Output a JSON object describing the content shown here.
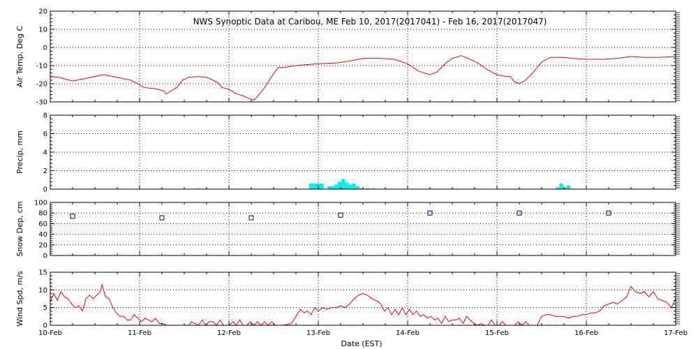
{
  "chart_data": {
    "type": "line",
    "title": "NWS Synoptic Data at Caribou, ME   Feb 10, 2017(2017041) - Feb 16, 2017(2017047)",
    "xlabel": "Date (EST)",
    "x_ticks": [
      "10-Feb",
      "11-Feb",
      "12-Feb",
      "13-Feb",
      "14-Feb",
      "15-Feb",
      "16-Feb",
      "17-Feb"
    ],
    "colors": {
      "temp": "#e8000b",
      "precip": "#00f0f0",
      "snow": "#000080",
      "wind": "#e8000b",
      "grid": "#000000"
    },
    "panels": [
      {
        "id": "temp",
        "type": "line",
        "ylabel": "Air Temp, Deg C",
        "ylim": [
          -30,
          20
        ],
        "y_ticks": [
          -30,
          -20,
          -10,
          0,
          10,
          20
        ],
        "points": [
          [
            0.0,
            -16.0
          ],
          [
            0.1,
            -16.5
          ],
          [
            0.25,
            -18.5
          ],
          [
            0.4,
            -17.0
          ],
          [
            0.55,
            -15.5
          ],
          [
            0.6,
            -15.0
          ],
          [
            0.75,
            -16.5
          ],
          [
            0.9,
            -18.0
          ],
          [
            0.98,
            -20.0
          ],
          [
            1.05,
            -22.0
          ],
          [
            1.2,
            -23.0
          ],
          [
            1.27,
            -24.0
          ],
          [
            1.3,
            -25.5
          ],
          [
            1.35,
            -24.0
          ],
          [
            1.42,
            -22.0
          ],
          [
            1.48,
            -18.0
          ],
          [
            1.55,
            -16.5
          ],
          [
            1.65,
            -16.0
          ],
          [
            1.75,
            -16.5
          ],
          [
            1.8,
            -17.5
          ],
          [
            1.88,
            -19.5
          ],
          [
            1.92,
            -22.0
          ],
          [
            2.0,
            -23.0
          ],
          [
            2.08,
            -25.5
          ],
          [
            2.15,
            -26.5
          ],
          [
            2.22,
            -28.0
          ],
          [
            2.28,
            -29.0
          ],
          [
            2.32,
            -27.0
          ],
          [
            2.4,
            -22.0
          ],
          [
            2.48,
            -16.0
          ],
          [
            2.55,
            -11.0
          ],
          [
            2.62,
            -11.0
          ],
          [
            2.75,
            -10.0
          ],
          [
            2.85,
            -9.5
          ],
          [
            3.0,
            -9.0
          ],
          [
            3.2,
            -8.5
          ],
          [
            3.35,
            -7.5
          ],
          [
            3.5,
            -6.0
          ],
          [
            3.7,
            -6.0
          ],
          [
            3.85,
            -6.5
          ],
          [
            4.0,
            -9.0
          ],
          [
            4.12,
            -13.0
          ],
          [
            4.25,
            -15.0
          ],
          [
            4.33,
            -13.5
          ],
          [
            4.42,
            -9.0
          ],
          [
            4.5,
            -6.0
          ],
          [
            4.6,
            -4.5
          ],
          [
            4.7,
            -6.5
          ],
          [
            4.8,
            -9.0
          ],
          [
            4.9,
            -12.5
          ],
          [
            5.0,
            -15.0
          ],
          [
            5.1,
            -16.0
          ],
          [
            5.15,
            -16.0
          ],
          [
            5.2,
            -19.0
          ],
          [
            5.25,
            -20.0
          ],
          [
            5.32,
            -18.0
          ],
          [
            5.4,
            -14.0
          ],
          [
            5.5,
            -8.0
          ],
          [
            5.6,
            -5.5
          ],
          [
            5.75,
            -5.5
          ],
          [
            5.85,
            -6.0
          ],
          [
            6.0,
            -6.5
          ],
          [
            6.2,
            -6.5
          ],
          [
            6.35,
            -6.0
          ],
          [
            6.5,
            -5.0
          ],
          [
            6.65,
            -5.5
          ],
          [
            6.8,
            -5.5
          ],
          [
            7.0,
            -5.0
          ]
        ]
      },
      {
        "id": "precip",
        "type": "bar",
        "ylabel": "Precip, mm",
        "ylim": [
          0,
          8
        ],
        "y_ticks": [
          0,
          2,
          4,
          6,
          8
        ],
        "bar_width_days": 0.04167,
        "bars": [
          [
            1.65,
            0.1
          ],
          [
            2.92,
            0.6
          ],
          [
            2.96,
            0.6
          ],
          [
            3.0,
            0.6
          ],
          [
            3.04,
            0.6
          ],
          [
            3.12,
            0.3
          ],
          [
            3.16,
            0.3
          ],
          [
            3.2,
            0.5
          ],
          [
            3.24,
            0.8
          ],
          [
            3.28,
            1.1
          ],
          [
            3.32,
            0.7
          ],
          [
            3.36,
            0.5
          ],
          [
            3.4,
            0.6
          ],
          [
            3.44,
            0.3
          ],
          [
            3.48,
            0.1
          ],
          [
            3.55,
            0.1
          ],
          [
            3.62,
            0.1
          ],
          [
            5.68,
            0.2
          ],
          [
            5.72,
            0.6
          ],
          [
            5.76,
            0.2
          ],
          [
            5.8,
            0.4
          ]
        ]
      },
      {
        "id": "snow",
        "type": "scatter",
        "ylabel": "Snow Dep, cm",
        "ylim": [
          0,
          100
        ],
        "y_ticks": [
          0,
          20,
          40,
          60,
          80,
          100
        ],
        "points": [
          [
            0.25,
            74
          ],
          [
            1.25,
            71
          ],
          [
            2.25,
            71
          ],
          [
            3.25,
            76
          ],
          [
            4.25,
            80
          ],
          [
            5.25,
            80
          ],
          [
            6.25,
            80
          ]
        ]
      },
      {
        "id": "wind",
        "type": "line",
        "ylabel": "Wind Spd, m/s",
        "ylim": [
          0,
          15
        ],
        "y_ticks": [
          0,
          5,
          10,
          15
        ],
        "points": [
          [
            0.0,
            6.5
          ],
          [
            0.04,
            9.0
          ],
          [
            0.08,
            7.0
          ],
          [
            0.12,
            9.5
          ],
          [
            0.16,
            8.0
          ],
          [
            0.2,
            7.5
          ],
          [
            0.24,
            6.0
          ],
          [
            0.28,
            5.0
          ],
          [
            0.32,
            5.5
          ],
          [
            0.36,
            4.0
          ],
          [
            0.4,
            7.5
          ],
          [
            0.44,
            8.5
          ],
          [
            0.48,
            7.5
          ],
          [
            0.52,
            8.5
          ],
          [
            0.56,
            9.5
          ],
          [
            0.58,
            11.5
          ],
          [
            0.62,
            8.0
          ],
          [
            0.66,
            7.5
          ],
          [
            0.7,
            5.0
          ],
          [
            0.74,
            3.5
          ],
          [
            0.78,
            2.5
          ],
          [
            0.82,
            2.5
          ],
          [
            0.86,
            1.5
          ],
          [
            0.9,
            1.5
          ],
          [
            0.94,
            3.0
          ],
          [
            0.98,
            2.0
          ],
          [
            1.02,
            1.0
          ],
          [
            1.06,
            2.0
          ],
          [
            1.1,
            1.5
          ],
          [
            1.14,
            1.0
          ],
          [
            1.18,
            2.0
          ],
          [
            1.22,
            0.5
          ],
          [
            1.26,
            0.5
          ],
          [
            1.3,
            0.0
          ],
          [
            1.55,
            0.0
          ],
          [
            1.58,
            1.0
          ],
          [
            1.62,
            0.5
          ],
          [
            1.66,
            0.0
          ],
          [
            1.7,
            1.5
          ],
          [
            1.74,
            0.0
          ],
          [
            1.78,
            1.0
          ],
          [
            1.82,
            1.0
          ],
          [
            1.86,
            0.0
          ],
          [
            1.9,
            1.5
          ],
          [
            1.94,
            0.0
          ],
          [
            2.0,
            0.0
          ],
          [
            2.05,
            1.0
          ],
          [
            2.08,
            0.0
          ],
          [
            2.12,
            1.5
          ],
          [
            2.16,
            0.0
          ],
          [
            2.2,
            0.0
          ],
          [
            2.24,
            1.0
          ],
          [
            2.28,
            0.0
          ],
          [
            2.32,
            1.0
          ],
          [
            2.36,
            0.0
          ],
          [
            2.4,
            1.0
          ],
          [
            2.44,
            0.0
          ],
          [
            2.48,
            1.0
          ],
          [
            2.52,
            0.0
          ],
          [
            2.6,
            0.0
          ],
          [
            2.7,
            0.5
          ],
          [
            2.8,
            4.5
          ],
          [
            2.84,
            3.5
          ],
          [
            2.88,
            4.0
          ],
          [
            2.92,
            3.0
          ],
          [
            2.96,
            5.0
          ],
          [
            3.0,
            4.0
          ],
          [
            3.05,
            5.0
          ],
          [
            3.1,
            4.5
          ],
          [
            3.15,
            5.0
          ],
          [
            3.2,
            5.0
          ],
          [
            3.25,
            5.5
          ],
          [
            3.3,
            5.0
          ],
          [
            3.35,
            6.0
          ],
          [
            3.4,
            7.5
          ],
          [
            3.45,
            8.5
          ],
          [
            3.5,
            9.0
          ],
          [
            3.55,
            8.5
          ],
          [
            3.6,
            7.5
          ],
          [
            3.65,
            7.0
          ],
          [
            3.7,
            6.0
          ],
          [
            3.74,
            4.0
          ],
          [
            3.78,
            5.0
          ],
          [
            3.82,
            3.0
          ],
          [
            3.86,
            4.5
          ],
          [
            3.9,
            3.0
          ],
          [
            3.94,
            5.0
          ],
          [
            3.98,
            3.0
          ],
          [
            4.02,
            4.5
          ],
          [
            4.06,
            3.0
          ],
          [
            4.1,
            4.0
          ],
          [
            4.14,
            2.5
          ],
          [
            4.18,
            3.0
          ],
          [
            4.22,
            2.0
          ],
          [
            4.26,
            2.5
          ],
          [
            4.3,
            1.5
          ],
          [
            4.34,
            2.0
          ],
          [
            4.38,
            0.5
          ],
          [
            4.42,
            2.5
          ],
          [
            4.46,
            1.0
          ],
          [
            4.5,
            1.5
          ],
          [
            4.54,
            1.5
          ],
          [
            4.58,
            2.0
          ],
          [
            4.62,
            0.5
          ],
          [
            4.66,
            2.5
          ],
          [
            4.7,
            1.5
          ],
          [
            4.74,
            0.5
          ],
          [
            4.78,
            0.0
          ],
          [
            4.82,
            0.5
          ],
          [
            4.86,
            0.0
          ],
          [
            4.9,
            0.0
          ],
          [
            4.94,
            1.5
          ],
          [
            4.98,
            0.0
          ],
          [
            5.02,
            0.0
          ],
          [
            5.06,
            1.0
          ],
          [
            5.1,
            0.0
          ],
          [
            5.2,
            0.0
          ],
          [
            5.24,
            1.0
          ],
          [
            5.28,
            0.0
          ],
          [
            5.32,
            1.0
          ],
          [
            5.36,
            0.0
          ],
          [
            5.45,
            0.0
          ],
          [
            5.5,
            2.5
          ],
          [
            5.55,
            3.0
          ],
          [
            5.6,
            3.0
          ],
          [
            5.65,
            2.5
          ],
          [
            5.7,
            2.5
          ],
          [
            5.75,
            2.5
          ],
          [
            5.8,
            2.0
          ],
          [
            5.85,
            2.5
          ],
          [
            5.9,
            2.5
          ],
          [
            5.95,
            3.0
          ],
          [
            6.0,
            3.0
          ],
          [
            6.05,
            3.5
          ],
          [
            6.1,
            3.5
          ],
          [
            6.15,
            4.0
          ],
          [
            6.2,
            5.5
          ],
          [
            6.25,
            6.0
          ],
          [
            6.3,
            6.5
          ],
          [
            6.35,
            6.0
          ],
          [
            6.4,
            7.0
          ],
          [
            6.45,
            8.0
          ],
          [
            6.5,
            11.0
          ],
          [
            6.55,
            9.5
          ],
          [
            6.6,
            9.0
          ],
          [
            6.65,
            9.5
          ],
          [
            6.7,
            8.0
          ],
          [
            6.75,
            9.5
          ],
          [
            6.8,
            7.5
          ],
          [
            6.85,
            7.0
          ],
          [
            6.9,
            6.5
          ],
          [
            6.95,
            5.0
          ],
          [
            7.0,
            7.5
          ]
        ]
      }
    ]
  }
}
